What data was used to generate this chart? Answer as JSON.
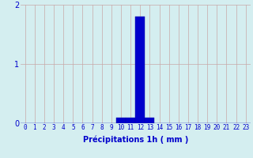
{
  "hours": [
    0,
    1,
    2,
    3,
    4,
    5,
    6,
    7,
    8,
    9,
    10,
    11,
    12,
    13,
    14,
    15,
    16,
    17,
    18,
    19,
    20,
    21,
    22,
    23
  ],
  "precipitation": [
    0,
    0,
    0,
    0,
    0,
    0,
    0,
    0,
    0,
    0,
    0.1,
    0.1,
    1.8,
    0.1,
    0,
    0,
    0,
    0,
    0,
    0,
    0,
    0,
    0,
    0
  ],
  "bar_color": "#0000cc",
  "bar_edge_color": "#0000aa",
  "background_color": "#d4eef0",
  "grid_color": "#c8a8a8",
  "xlabel": "Précipitations 1h ( mm )",
  "xlabel_color": "#0000cc",
  "tick_color": "#0000cc",
  "ylim": [
    0,
    2
  ],
  "yticks": [
    0,
    1,
    2
  ],
  "xlim": [
    -0.5,
    23.5
  ],
  "tick_fontsize": 5.5,
  "xlabel_fontsize": 7.0,
  "ylabel_fontsize": 7.0
}
